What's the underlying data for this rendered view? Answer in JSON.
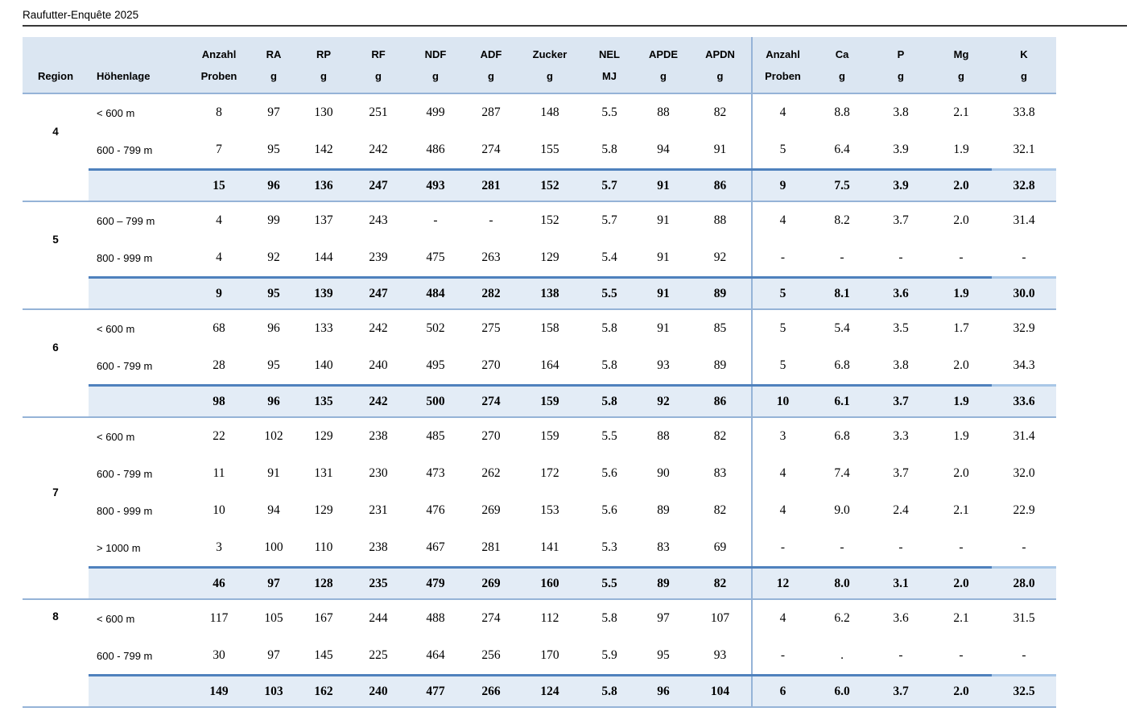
{
  "title": "Raufutter-Enquête 2025",
  "colors": {
    "header_background": "#dbe6f2",
    "total_row_background": "#e3ecf6",
    "border_dark": "#4f81bd",
    "border_light": "#95b3d7",
    "title_rule": "#383838"
  },
  "table": {
    "columns": [
      {
        "id": "region",
        "line1": "",
        "line2": "Region"
      },
      {
        "id": "hoehenlage",
        "line1": "",
        "line2": "Höhenlage"
      },
      {
        "id": "anzahl-proben-1",
        "line1": "Anzahl",
        "line2": "Proben"
      },
      {
        "id": "ra",
        "line1": "RA",
        "line2": "g"
      },
      {
        "id": "rp",
        "line1": "RP",
        "line2": "g"
      },
      {
        "id": "rf",
        "line1": "RF",
        "line2": "g"
      },
      {
        "id": "ndf",
        "line1": "NDF",
        "line2": "g"
      },
      {
        "id": "adf",
        "line1": "ADF",
        "line2": "g"
      },
      {
        "id": "zucker",
        "line1": "Zucker",
        "line2": "g"
      },
      {
        "id": "nel",
        "line1": "NEL",
        "line2": "MJ"
      },
      {
        "id": "apde",
        "line1": "APDE",
        "line2": "g"
      },
      {
        "id": "apdn",
        "line1": "APDN",
        "line2": "g"
      },
      {
        "id": "anzahl-proben-2",
        "line1": "Anzahl",
        "line2": "Proben"
      },
      {
        "id": "ca",
        "line1": "Ca",
        "line2": "g"
      },
      {
        "id": "p",
        "line1": "P",
        "line2": "g"
      },
      {
        "id": "mg",
        "line1": "Mg",
        "line2": "g"
      },
      {
        "id": "k",
        "line1": "K",
        "line2": "g"
      }
    ],
    "groups": [
      {
        "region": "4",
        "region_align": "middle",
        "rows": [
          {
            "hoehenlage": "< 600 m",
            "values": [
              "8",
              "97",
              "130",
              "251",
              "499",
              "287",
              "148",
              "5.5",
              "88",
              "82",
              "4",
              "8.8",
              "3.8",
              "2.1",
              "33.8"
            ]
          },
          {
            "hoehenlage": "600 - 799 m",
            "values": [
              "7",
              "95",
              "142",
              "242",
              "486",
              "274",
              "155",
              "5.8",
              "94",
              "91",
              "5",
              "6.4",
              "3.9",
              "1.9",
              "32.1"
            ]
          }
        ],
        "total": {
          "values": [
            "15",
            "96",
            "136",
            "247",
            "493",
            "281",
            "152",
            "5.7",
            "91",
            "86",
            "9",
            "7.5",
            "3.9",
            "2.0",
            "32.8"
          ]
        }
      },
      {
        "region": "5",
        "region_align": "middle",
        "rows": [
          {
            "hoehenlage": "600 – 799 m",
            "values": [
              "4",
              "99",
              "137",
              "243",
              "-",
              "-",
              "152",
              "5.7",
              "91",
              "88",
              "4",
              "8.2",
              "3.7",
              "2.0",
              "31.4"
            ]
          },
          {
            "hoehenlage": "800 - 999 m",
            "values": [
              "4",
              "92",
              "144",
              "239",
              "475",
              "263",
              "129",
              "5.4",
              "91",
              "92",
              "-",
              "-",
              "-",
              "-",
              "-"
            ]
          }
        ],
        "total": {
          "values": [
            "9",
            "95",
            "139",
            "247",
            "484",
            "282",
            "138",
            "5.5",
            "91",
            "89",
            "5",
            "8.1",
            "3.6",
            "1.9",
            "30.0"
          ]
        }
      },
      {
        "region": "6",
        "region_align": "middle",
        "rows": [
          {
            "hoehenlage": "< 600 m",
            "values": [
              "68",
              "96",
              "133",
              "242",
              "502",
              "275",
              "158",
              "5.8",
              "91",
              "85",
              "5",
              "5.4",
              "3.5",
              "1.7",
              "32.9"
            ]
          },
          {
            "hoehenlage": "600 - 799 m",
            "values": [
              "28",
              "95",
              "140",
              "240",
              "495",
              "270",
              "164",
              "5.8",
              "93",
              "89",
              "5",
              "6.8",
              "3.8",
              "2.0",
              "34.3"
            ]
          }
        ],
        "total": {
          "values": [
            "98",
            "96",
            "135",
            "242",
            "500",
            "274",
            "159",
            "5.8",
            "92",
            "86",
            "10",
            "6.1",
            "3.7",
            "1.9",
            "33.6"
          ]
        }
      },
      {
        "region": "7",
        "region_align": "middle",
        "rows": [
          {
            "hoehenlage": "< 600 m",
            "values": [
              "22",
              "102",
              "129",
              "238",
              "485",
              "270",
              "159",
              "5.5",
              "88",
              "82",
              "3",
              "6.8",
              "3.3",
              "1.9",
              "31.4"
            ]
          },
          {
            "hoehenlage": "600 - 799 m",
            "values": [
              "11",
              "91",
              "131",
              "230",
              "473",
              "262",
              "172",
              "5.6",
              "90",
              "83",
              "4",
              "7.4",
              "3.7",
              "2.0",
              "32.0"
            ]
          },
          {
            "hoehenlage": "800 - 999 m",
            "values": [
              "10",
              "94",
              "129",
              "231",
              "476",
              "269",
              "153",
              "5.6",
              "89",
              "82",
              "4",
              "9.0",
              "2.4",
              "2.1",
              "22.9"
            ]
          },
          {
            "hoehenlage": "> 1000 m",
            "values": [
              "3",
              "100",
              "110",
              "238",
              "467",
              "281",
              "141",
              "5.3",
              "83",
              "69",
              "-",
              "-",
              "-",
              "-",
              "-"
            ]
          }
        ],
        "total": {
          "values": [
            "46",
            "97",
            "128",
            "235",
            "479",
            "269",
            "160",
            "5.5",
            "89",
            "82",
            "12",
            "8.0",
            "3.1",
            "2.0",
            "28.0"
          ]
        }
      },
      {
        "region": "8",
        "region_align": "top",
        "rows": [
          {
            "hoehenlage": "< 600 m",
            "values": [
              "117",
              "105",
              "167",
              "244",
              "488",
              "274",
              "112",
              "5.8",
              "97",
              "107",
              "4",
              "6.2",
              "3.6",
              "2.1",
              "31.5"
            ]
          },
          {
            "hoehenlage": "600 - 799 m",
            "values": [
              "30",
              "97",
              "145",
              "225",
              "464",
              "256",
              "170",
              "5.9",
              "95",
              "93",
              "-",
              ".",
              "-",
              "-",
              "-"
            ]
          }
        ],
        "total": {
          "values": [
            "149",
            "103",
            "162",
            "240",
            "477",
            "266",
            "124",
            "5.8",
            "96",
            "104",
            "6",
            "6.0",
            "3.7",
            "2.0",
            "32.5"
          ]
        }
      }
    ]
  }
}
